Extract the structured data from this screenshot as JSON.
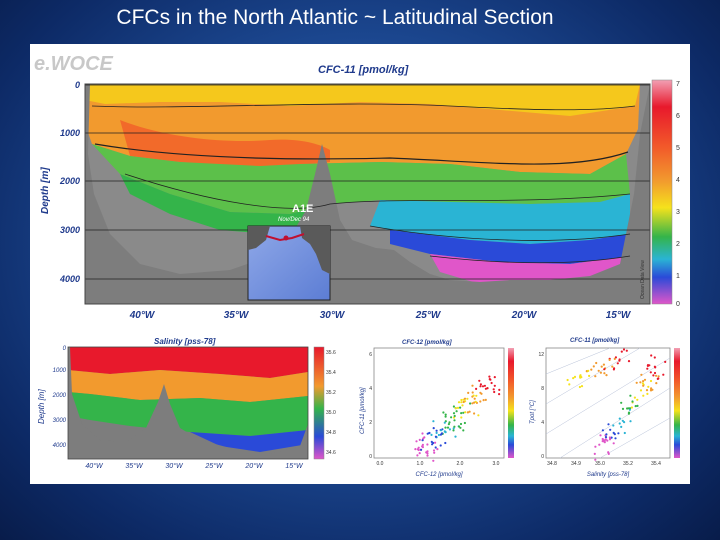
{
  "slide": {
    "title": "CFCs in the North Atlantic  ~ Latitudinal Section"
  },
  "main_figure": {
    "logo": "e.WOCE",
    "title": "CFC-11 [pmol/kg]",
    "ylabel": "Depth [m]",
    "depth_ticks": [
      "0",
      "1000",
      "2000",
      "3000",
      "4000"
    ],
    "lon_ticks": [
      "40°W",
      "35°W",
      "30°W",
      "25°W",
      "20°W",
      "15°W"
    ],
    "colorbar_ticks": [
      "7",
      "6",
      "5",
      "4",
      "3",
      "2",
      "1",
      "0"
    ],
    "colorbar_label": "Ocean Data View",
    "colors": {
      "high": "#e8192c",
      "mid": "#f29a2e",
      "low_mid": "#34b44a",
      "low": "#e056c9",
      "topography": "#7d7d7d"
    }
  },
  "inset_map": {
    "section_name": "A1E",
    "date": "Nov/Dec 94"
  },
  "salinity_panel": {
    "title": "Salinity [pss-78]",
    "ylabel": "Depth [m]",
    "depth_ticks": [
      "0",
      "1000",
      "2000",
      "3000",
      "4000"
    ],
    "lon_ticks": [
      "40°W",
      "35°W",
      "30°W",
      "25°W",
      "20°W",
      "15°W"
    ],
    "colorbar_ticks": [
      "35.6",
      "35.4",
      "35.2",
      "35.0",
      "34.8",
      "34.6"
    ]
  },
  "cfc12_panel": {
    "title": "CFC-12 [pmol/kg]",
    "xlabel": "CFC-12 [pmol/kg]",
    "ylabel": "CFC-11 [pmol/kg]",
    "x_ticks": [
      "0.0",
      "1.0",
      "2.0",
      "3.0"
    ],
    "y_ticks": [
      "0",
      "2",
      "4",
      "6"
    ]
  },
  "ts_panel": {
    "title": "CFC-11 [pmol/kg]",
    "xlabel": "Salinity [pss-78]",
    "ylabel": "Tpot [°C]",
    "x_ticks": [
      "34.8",
      "34.9",
      "35.0",
      "35.2",
      "35.4"
    ],
    "y_ticks": [
      "0",
      "4",
      "8",
      "12"
    ]
  }
}
